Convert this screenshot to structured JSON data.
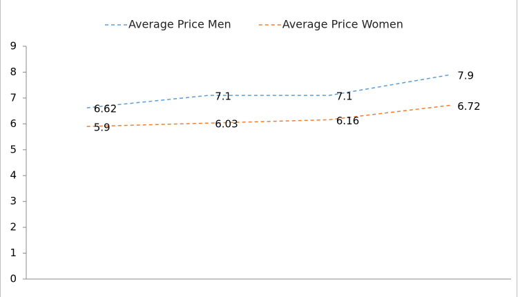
{
  "chart_data": {
    "type": "line",
    "categories": [
      null,
      null,
      null,
      null
    ],
    "series": [
      {
        "name": "Average Price Men",
        "color": "#5b9bd5",
        "values": [
          6.62,
          7.1,
          7.1,
          7.9
        ]
      },
      {
        "name": "Average Price Women",
        "color": "#ed7d31",
        "values": [
          5.9,
          6.03,
          6.16,
          6.72
        ]
      }
    ],
    "ylim": [
      0,
      9
    ],
    "yticks": [
      0,
      1,
      2,
      3,
      4,
      5,
      6,
      7,
      8,
      9
    ],
    "dashed": true,
    "legend": "top"
  }
}
